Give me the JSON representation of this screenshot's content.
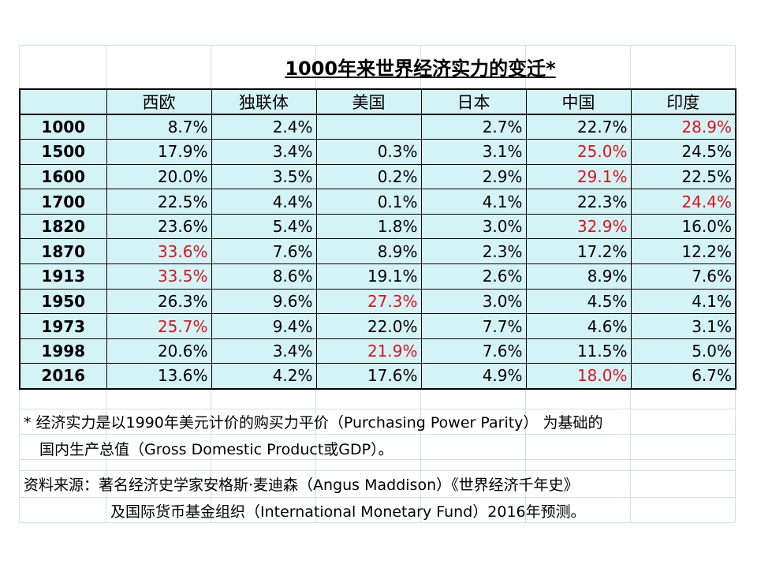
{
  "title": "1000年来世界经济实力的变迁*",
  "columns": [
    "西欧",
    "独联体",
    "美国",
    "日本",
    "中国",
    "印度"
  ],
  "rows": [
    {
      "year": "1000",
      "cells": [
        {
          "v": "8.7%"
        },
        {
          "v": "2.4%"
        },
        {
          "v": ""
        },
        {
          "v": "2.7%"
        },
        {
          "v": "22.7%"
        },
        {
          "v": "28.9%",
          "hl": true
        }
      ]
    },
    {
      "year": "1500",
      "cells": [
        {
          "v": "17.9%"
        },
        {
          "v": "3.4%"
        },
        {
          "v": "0.3%"
        },
        {
          "v": "3.1%"
        },
        {
          "v": "25.0%",
          "hl": true
        },
        {
          "v": "24.5%"
        }
      ]
    },
    {
      "year": "1600",
      "cells": [
        {
          "v": "20.0%"
        },
        {
          "v": "3.5%"
        },
        {
          "v": "0.2%"
        },
        {
          "v": "2.9%"
        },
        {
          "v": "29.1%",
          "hl": true
        },
        {
          "v": "22.5%"
        }
      ]
    },
    {
      "year": "1700",
      "cells": [
        {
          "v": "22.5%"
        },
        {
          "v": "4.4%"
        },
        {
          "v": "0.1%"
        },
        {
          "v": "4.1%"
        },
        {
          "v": "22.3%"
        },
        {
          "v": "24.4%",
          "hl": true
        }
      ]
    },
    {
      "year": "1820",
      "cells": [
        {
          "v": "23.6%"
        },
        {
          "v": "5.4%"
        },
        {
          "v": "1.8%"
        },
        {
          "v": "3.0%"
        },
        {
          "v": "32.9%",
          "hl": true
        },
        {
          "v": "16.0%"
        }
      ]
    },
    {
      "year": "1870",
      "cells": [
        {
          "v": "33.6%",
          "hl": true
        },
        {
          "v": "7.6%"
        },
        {
          "v": "8.9%"
        },
        {
          "v": "2.3%"
        },
        {
          "v": "17.2%"
        },
        {
          "v": "12.2%"
        }
      ]
    },
    {
      "year": "1913",
      "cells": [
        {
          "v": "33.5%",
          "hl": true
        },
        {
          "v": "8.6%"
        },
        {
          "v": "19.1%"
        },
        {
          "v": "2.6%"
        },
        {
          "v": "8.9%"
        },
        {
          "v": "7.6%"
        }
      ]
    },
    {
      "year": "1950",
      "cells": [
        {
          "v": "26.3%"
        },
        {
          "v": "9.6%"
        },
        {
          "v": "27.3%",
          "hl": true
        },
        {
          "v": "3.0%"
        },
        {
          "v": "4.5%"
        },
        {
          "v": "4.1%"
        }
      ]
    },
    {
      "year": "1973",
      "cells": [
        {
          "v": "25.7%",
          "hl": true
        },
        {
          "v": "9.4%"
        },
        {
          "v": "22.0%"
        },
        {
          "v": "7.7%"
        },
        {
          "v": "4.6%"
        },
        {
          "v": "3.1%"
        }
      ]
    },
    {
      "year": "1998",
      "cells": [
        {
          "v": "20.6%"
        },
        {
          "v": "3.4%"
        },
        {
          "v": "21.9%",
          "hl": true
        },
        {
          "v": "7.6%"
        },
        {
          "v": "11.5%"
        },
        {
          "v": "5.0%"
        }
      ]
    },
    {
      "year": "2016",
      "cells": [
        {
          "v": "13.6%"
        },
        {
          "v": "4.2%"
        },
        {
          "v": "17.6%"
        },
        {
          "v": "4.9%"
        },
        {
          "v": "18.0%",
          "hl": true
        },
        {
          "v": "6.7%"
        }
      ]
    }
  ],
  "notes": {
    "line1": "* 经济实力是以1990年美元计价的购买力平价（Purchasing Power Parity） 为基础的",
    "line2": "国内生产总值（Gross Domestic Product或GDP）。",
    "line3": "资料来源：著名经济史学家安格斯·麦迪森（Angus Maddison）《世界经济千年史》",
    "line4": "及国际货币基金组织（International Monetary Fund）2016年预测。"
  },
  "colors": {
    "table_bg": "#d4f3f6",
    "highlight": "#e0131b",
    "grid": "#d6dfe8"
  }
}
